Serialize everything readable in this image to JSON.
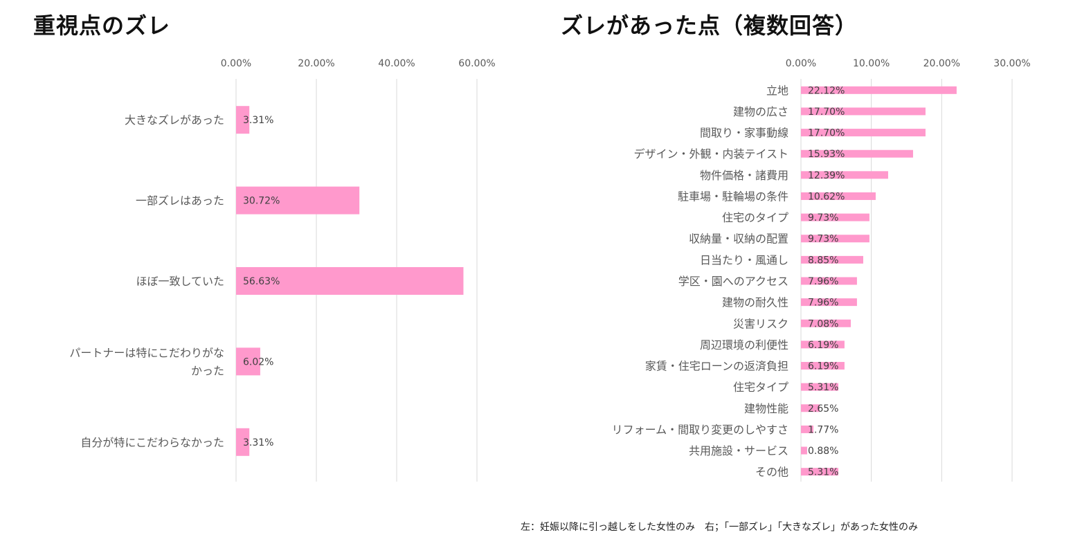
{
  "chart_data": [
    {
      "type": "bar",
      "orientation": "horizontal",
      "title": "重視点のズレ",
      "xlim": [
        0,
        60
      ],
      "ticks": [
        "0.00%",
        "20.00%",
        "40.00%",
        "60.00%"
      ],
      "tick_values": [
        0,
        20,
        40,
        60
      ],
      "grid": true,
      "bar_color": "#ff99cc",
      "categories": [
        [
          "大きなズレがあった"
        ],
        [
          "一部ズレはあった"
        ],
        [
          "ほぼ一致していた"
        ],
        [
          "パートナーは特にこだわりがな",
          "かった"
        ],
        [
          "自分が特にこだわらなかった"
        ]
      ],
      "values": [
        3.31,
        30.72,
        56.63,
        6.02,
        3.31
      ],
      "labels": [
        "3.31%",
        "30.72%",
        "56.63%",
        "6.02%",
        "3.31%"
      ]
    },
    {
      "type": "bar",
      "orientation": "horizontal",
      "title": "ズレがあった点（複数回答）",
      "xlim": [
        0,
        30
      ],
      "ticks": [
        "0.00%",
        "10.00%",
        "20.00%",
        "30.00%"
      ],
      "tick_values": [
        0,
        10,
        20,
        30
      ],
      "grid": true,
      "bar_color": "#ff99cc",
      "categories": [
        [
          "立地"
        ],
        [
          "建物の広さ"
        ],
        [
          "間取り・家事動線"
        ],
        [
          "デザイン・外観・内装テイスト"
        ],
        [
          "物件価格・諸費用"
        ],
        [
          "駐車場・駐輪場の条件"
        ],
        [
          "住宅のタイプ"
        ],
        [
          "収納量・収納の配置"
        ],
        [
          "日当たり・風通し"
        ],
        [
          "学区・園へのアクセス"
        ],
        [
          "建物の耐久性"
        ],
        [
          "災害リスク"
        ],
        [
          "周辺環境の利便性"
        ],
        [
          "家賃・住宅ローンの返済負担"
        ],
        [
          "住宅タイプ"
        ],
        [
          "建物性能"
        ],
        [
          "リフォーム・間取り変更のしやすさ"
        ],
        [
          "共用施設・サービス"
        ],
        [
          "その他"
        ]
      ],
      "values": [
        22.12,
        17.7,
        17.7,
        15.93,
        12.39,
        10.62,
        9.73,
        9.73,
        8.85,
        7.96,
        7.96,
        7.08,
        6.19,
        6.19,
        5.31,
        2.65,
        1.77,
        0.88,
        5.31
      ],
      "labels": [
        "22.12%",
        "17.70%",
        "17.70%",
        "15.93%",
        "12.39%",
        "10.62%",
        "9.73%",
        "9.73%",
        "8.85%",
        "7.96%",
        "7.96%",
        "7.08%",
        "6.19%",
        "6.19%",
        "5.31%",
        "2.65%",
        "1.77%",
        "0.88%",
        "5.31%"
      ]
    }
  ],
  "footnote": "左：妊娠以降に引っ越しをした女性のみ　右；「一部ズレ」「大きなズレ」があった女性のみ"
}
